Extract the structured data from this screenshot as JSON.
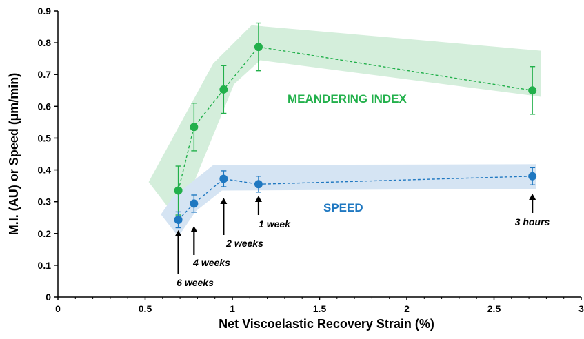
{
  "chart_data": {
    "type": "line",
    "title": "",
    "xlabel": "Net Viscoelastic Recovery Strain (%)",
    "ylabel": "M.I. (AU) or Speed (µm/min)",
    "xlim": [
      0,
      3
    ],
    "ylim": [
      0,
      0.9
    ],
    "x_ticks": [
      "0",
      "0.5",
      "1",
      "1.5",
      "2",
      "2.5",
      "3"
    ],
    "y_ticks": [
      "0",
      "0.1",
      "0.2",
      "0.3",
      "0.4",
      "0.5",
      "0.6",
      "0.7",
      "0.8",
      "0.9"
    ],
    "grid": false,
    "series": [
      {
        "name": "MEANDERING INDEX",
        "color": "#22b04b",
        "band_color": "#d4eedb",
        "x": [
          0.69,
          0.78,
          0.95,
          1.15,
          2.72
        ],
        "y": [
          0.335,
          0.535,
          0.653,
          0.787,
          0.65
        ],
        "err": [
          0.077,
          0.075,
          0.075,
          0.075,
          0.075
        ]
      },
      {
        "name": "SPEED",
        "color": "#1f78c1",
        "band_color": "#d5e4f3",
        "x": [
          0.69,
          0.78,
          0.95,
          1.15,
          2.72
        ],
        "y": [
          0.243,
          0.294,
          0.372,
          0.355,
          0.38
        ],
        "err": [
          0.025,
          0.027,
          0.025,
          0.025,
          0.027
        ]
      }
    ],
    "annotations": [
      {
        "text": "6 weeks",
        "x": 0.69
      },
      {
        "text": "4 weeks",
        "x": 0.78
      },
      {
        "text": "2 weeks",
        "x": 0.95
      },
      {
        "text": "1 week",
        "x": 1.15
      },
      {
        "text": "3 hours",
        "x": 2.72
      }
    ]
  }
}
